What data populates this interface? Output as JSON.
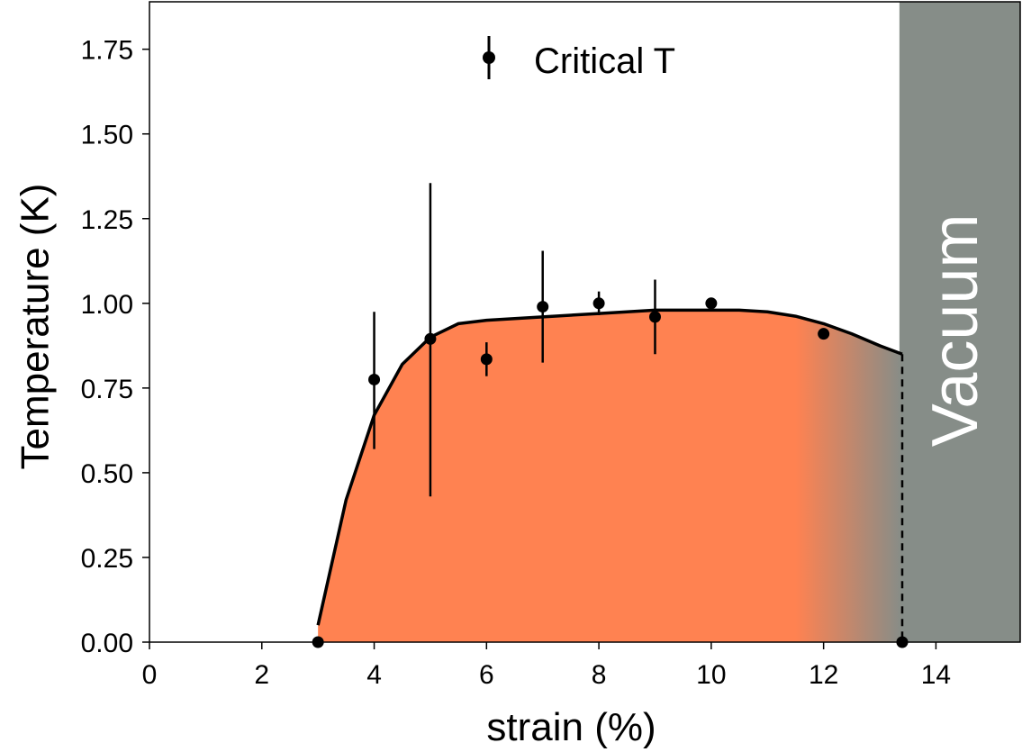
{
  "chart_data": {
    "type": "scatter",
    "xlabel": "strain (%)",
    "ylabel": "Temperature (K)",
    "xlim": [
      0,
      15.5
    ],
    "ylim": [
      0,
      1.89
    ],
    "xticks": [
      0,
      2,
      4,
      6,
      8,
      10,
      12,
      14
    ],
    "yticks": [
      0.0,
      0.25,
      0.5,
      0.75,
      1.0,
      1.25,
      1.5,
      1.75
    ],
    "legend": {
      "position": "top-center",
      "entries": [
        "Critical T"
      ]
    },
    "series": [
      {
        "name": "Critical T",
        "kind": "errorbar",
        "x": [
          3,
          4,
          5,
          6,
          7,
          8,
          9,
          10,
          12,
          13.4
        ],
        "y": [
          0.0,
          0.775,
          0.895,
          0.835,
          0.99,
          1.0,
          0.96,
          1.0,
          0.91,
          0.0
        ],
        "yerr_low": [
          0,
          0.205,
          0.465,
          0.05,
          0.165,
          0.035,
          0.11,
          0,
          0,
          0
        ],
        "yerr_high": [
          0,
          0.2,
          0.46,
          0.05,
          0.165,
          0.035,
          0.11,
          0,
          0,
          0
        ]
      },
      {
        "kind": "fit-curve",
        "x": [
          3.0,
          3.5,
          4.0,
          4.5,
          5.0,
          5.5,
          6.0,
          7.0,
          8.0,
          9.0,
          10.0,
          10.5,
          11.0,
          11.5,
          12.0,
          12.5,
          13.0,
          13.4
        ],
        "y": [
          0.05,
          0.42,
          0.67,
          0.82,
          0.9,
          0.94,
          0.95,
          0.96,
          0.97,
          0.98,
          0.98,
          0.98,
          0.975,
          0.962,
          0.94,
          0.91,
          0.875,
          0.85
        ]
      }
    ],
    "boundary": {
      "x": 13.4
    },
    "fill": {
      "color": "#ff8251",
      "fade_to": "#868d88",
      "fade_start_x": 11.5
    },
    "region": {
      "label": "Vacuum",
      "x_start": 13.35,
      "color": "#868d88"
    },
    "grid": false
  }
}
